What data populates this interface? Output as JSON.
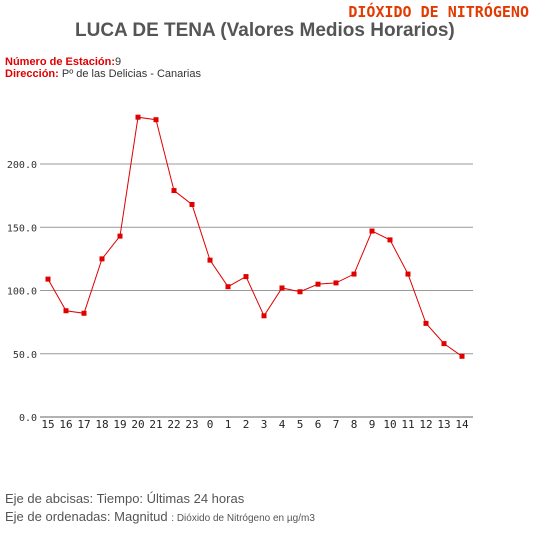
{
  "pollutant": "DIÓXIDO DE NITRÓGENO",
  "title": "LUCA DE TENA (Valores Medios Horarios)",
  "station": {
    "number_label": "Número de Estación:",
    "number_value": "9",
    "address_label": "Dirección:",
    "address_value": "Pº de las Delicias - Canarias"
  },
  "axis_notes": {
    "x_label": "Eje de abcisas:",
    "x_value": "Tiempo: Últimas 24 horas",
    "y_label": "Eje de ordenadas:",
    "y_value": "Magnitud",
    "y_unit": ": Dióxido de Nitrógeno en µg/m3"
  },
  "chart_data": {
    "type": "line",
    "categories": [
      "15",
      "16",
      "17",
      "18",
      "19",
      "20",
      "21",
      "22",
      "23",
      "0",
      "1",
      "2",
      "3",
      "4",
      "5",
      "6",
      "7",
      "8",
      "9",
      "10",
      "11",
      "12",
      "13",
      "14"
    ],
    "values": [
      109,
      84,
      82,
      125,
      143,
      237,
      235,
      179,
      168,
      124,
      103,
      111,
      80,
      102,
      99,
      105,
      106,
      113,
      147,
      140,
      113,
      74,
      58,
      48
    ],
    "ylim": [
      0,
      200
    ],
    "yticks": [
      "0.0",
      "50.0",
      "100.0",
      "150.0",
      "200.0"
    ],
    "ytick_values": [
      0,
      50,
      100,
      150,
      200
    ],
    "grid": true,
    "line_color": "#e00000"
  }
}
